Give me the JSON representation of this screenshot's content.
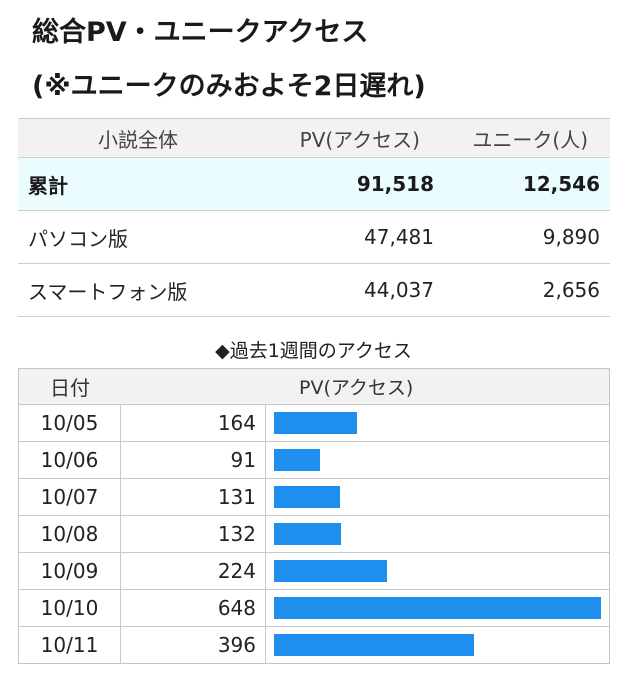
{
  "heading": {
    "line1": "総合PV・ユニークアクセス",
    "line2": "(※ユニークのみおよそ2日遅れ)"
  },
  "summary": {
    "headers": [
      "小説全体",
      "PV(アクセス)",
      "ユニーク(人)"
    ],
    "rows": [
      {
        "label": "累計",
        "pv": "91,518",
        "unique": "12,546"
      },
      {
        "label": "パソコン版",
        "pv": "47,481",
        "unique": "9,890"
      },
      {
        "label": "スマートフォン版",
        "pv": "44,037",
        "unique": "2,656"
      }
    ],
    "highlight_color": "#eafcfe"
  },
  "weekly": {
    "caption": "◆過去1週間のアクセス",
    "headers": [
      "日付",
      "PV(アクセス)"
    ],
    "bar_color": "#1f8fef",
    "max_pv": 648,
    "rows": [
      {
        "date": "10/05",
        "pv": "164",
        "value": 164
      },
      {
        "date": "10/06",
        "pv": "91",
        "value": 91
      },
      {
        "date": "10/07",
        "pv": "131",
        "value": 131
      },
      {
        "date": "10/08",
        "pv": "132",
        "value": 132
      },
      {
        "date": "10/09",
        "pv": "224",
        "value": 224
      },
      {
        "date": "10/10",
        "pv": "648",
        "value": 648
      },
      {
        "date": "10/11",
        "pv": "396",
        "value": 396
      }
    ]
  }
}
